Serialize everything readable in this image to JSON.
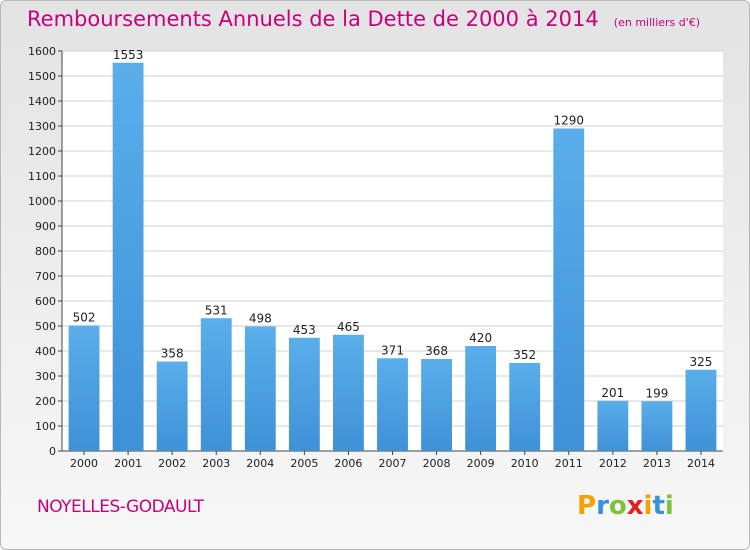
{
  "chart_data": {
    "type": "bar",
    "title": "Remboursements Annuels de la Dette de 2000 à 2014",
    "subtitle": "(en milliers d'€)",
    "categories": [
      "2000",
      "2001",
      "2002",
      "2003",
      "2004",
      "2005",
      "2006",
      "2007",
      "2008",
      "2009",
      "2010",
      "2011",
      "2012",
      "2013",
      "2014"
    ],
    "values": [
      502,
      1553,
      358,
      531,
      498,
      453,
      465,
      371,
      368,
      420,
      352,
      1290,
      201,
      199,
      325
    ],
    "ylim": [
      0,
      1600
    ],
    "ytick_step": 100,
    "grid": true,
    "bar_color": "#3f91d6"
  },
  "footer": {
    "city": "NOYELLES-GODAULT",
    "brand_letters": [
      "P",
      "r",
      "o",
      "x",
      "i",
      "t",
      "i"
    ],
    "brand_colors": [
      "#f2a100",
      "#3a8fd8",
      "#7cc242",
      "#e02020",
      "#f2a100",
      "#3a8fd8",
      "#7cc242"
    ]
  },
  "colors": {
    "accent": "#c6007e"
  }
}
